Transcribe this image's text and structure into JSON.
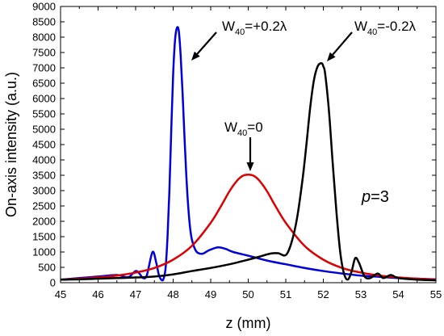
{
  "chart_data": {
    "type": "line",
    "xlabel": "z (mm)",
    "ylabel": "On-axis intensity (a.u.)",
    "xlim": [
      45,
      55
    ],
    "ylim": [
      0,
      9000
    ],
    "x_ticks": [
      "45",
      "46",
      "47",
      "48",
      "49",
      "50",
      "51",
      "52",
      "53",
      "54",
      "55"
    ],
    "y_ticks": [
      "0",
      "500",
      "1000",
      "1500",
      "2000",
      "2500",
      "3000",
      "3500",
      "4000",
      "4500",
      "5000",
      "5500",
      "6000",
      "6500",
      "7000",
      "7500",
      "8000",
      "8500",
      "9000"
    ],
    "grid": false,
    "legend": "none",
    "series": [
      {
        "color": "#0000dd",
        "x": [
          45.0,
          45.5,
          46.0,
          46.5,
          46.8,
          47.0,
          47.1,
          47.2,
          47.3,
          47.45,
          47.55,
          47.62,
          47.7,
          47.75,
          47.8,
          47.85,
          47.9,
          47.95,
          48.0,
          48.05,
          48.1,
          48.15,
          48.2,
          48.25,
          48.3,
          48.35,
          48.4,
          48.45,
          48.5,
          48.6,
          48.7,
          48.8,
          48.9,
          49.0,
          49.2,
          49.4,
          49.6,
          50.0,
          50.5,
          51.0,
          51.5,
          52.0,
          52.5,
          53.0,
          53.5,
          54.0,
          54.5,
          55.0
        ],
        "y": [
          100,
          150,
          200,
          250,
          180,
          380,
          300,
          150,
          250,
          1000,
          650,
          250,
          80,
          150,
          500,
          1500,
          3000,
          5000,
          6800,
          7900,
          8300,
          8200,
          7400,
          6200,
          4800,
          3500,
          2500,
          1800,
          1400,
          1050,
          950,
          950,
          1020,
          1080,
          1150,
          1100,
          1000,
          880,
          720,
          600,
          480,
          380,
          300,
          230,
          190,
          150,
          130,
          110
        ]
      },
      {
        "color": "#dd0000",
        "x": [
          45.0,
          45.5,
          46.0,
          46.5,
          47.0,
          47.5,
          48.0,
          48.5,
          49.0,
          49.3,
          49.5,
          49.7,
          49.85,
          50.0,
          50.15,
          50.3,
          50.5,
          50.7,
          51.0,
          51.5,
          52.0,
          52.5,
          53.0,
          53.5,
          54.0,
          54.5,
          55.0
        ],
        "y": [
          100,
          130,
          170,
          230,
          330,
          480,
          750,
          1200,
          1950,
          2550,
          2980,
          3320,
          3480,
          3520,
          3480,
          3320,
          2980,
          2550,
          1950,
          1200,
          750,
          480,
          330,
          230,
          170,
          130,
          100
        ]
      },
      {
        "color": "#000000",
        "x": [
          45.0,
          45.5,
          46.0,
          46.5,
          47.0,
          47.5,
          48.0,
          48.5,
          49.0,
          49.5,
          50.0,
          50.3,
          50.6,
          50.8,
          51.0,
          51.15,
          51.3,
          51.45,
          51.55,
          51.65,
          51.75,
          51.85,
          51.95,
          52.0,
          52.05,
          52.15,
          52.25,
          52.35,
          52.45,
          52.55,
          52.65,
          52.75,
          52.85,
          52.95,
          53.1,
          53.25,
          53.45,
          53.6,
          53.8,
          54.0,
          54.5,
          55.0
        ],
        "y": [
          100,
          110,
          130,
          150,
          170,
          200,
          270,
          380,
          480,
          600,
          750,
          850,
          950,
          960,
          900,
          1300,
          2100,
          3400,
          4500,
          5700,
          6600,
          7050,
          7150,
          7050,
          6800,
          5600,
          3900,
          2300,
          1000,
          300,
          100,
          350,
          800,
          650,
          200,
          150,
          300,
          150,
          250,
          150,
          100,
          80
        ]
      }
    ],
    "annotations": {
      "plus": {
        "base": "W",
        "sub": "40",
        "rest": "=+0.2λ"
      },
      "zero": {
        "base": "W",
        "sub": "40",
        "rest": "=0"
      },
      "minus": {
        "base": "W",
        "sub": "40",
        "rest": "=-0.2λ"
      },
      "p_label": {
        "italic": "p",
        "rest": "=3"
      }
    }
  }
}
